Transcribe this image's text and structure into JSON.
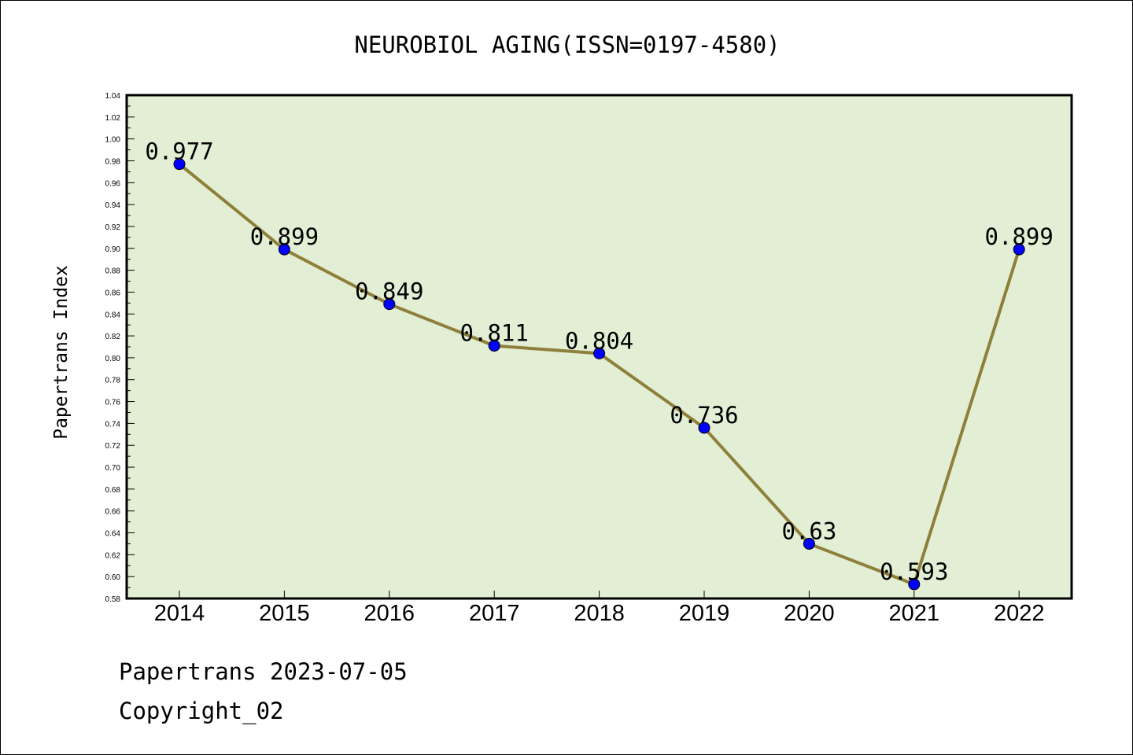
{
  "chart_data": {
    "type": "line",
    "title": "NEUROBIOL AGING(ISSN=0197-4580)",
    "xlabel": "",
    "ylabel": "Papertrans Index",
    "categories": [
      "2014",
      "2015",
      "2016",
      "2017",
      "2018",
      "2019",
      "2020",
      "2021",
      "2022"
    ],
    "series": [
      {
        "values": [
          0.977,
          0.899,
          0.849,
          0.811,
          0.804,
          0.736,
          0.63,
          0.593,
          0.899
        ],
        "data_labels": [
          "0.977",
          "0.899",
          "0.849",
          "0.811",
          "0.804",
          "0.736",
          "0.63",
          "0.593",
          "0.899"
        ]
      }
    ],
    "ylim": [
      0.58,
      1.04
    ],
    "yticks": [
      "0.58",
      "0.60",
      "0.62",
      "0.64",
      "0.66",
      "0.68",
      "0.70",
      "0.72",
      "0.74",
      "0.76",
      "0.78",
      "0.80",
      "0.82",
      "0.84",
      "0.86",
      "0.88",
      "0.90",
      "0.92",
      "0.94",
      "0.96",
      "0.98",
      "1.00",
      "1.02",
      "1.04"
    ],
    "grid": false,
    "legend": "none",
    "colors": {
      "plot_background": "#e2efd5",
      "line": "#8e7f3a",
      "marker": "#0000ff"
    }
  },
  "footer": {
    "line1": "Papertrans 2023-07-05",
    "line2": "Copyright_02"
  }
}
